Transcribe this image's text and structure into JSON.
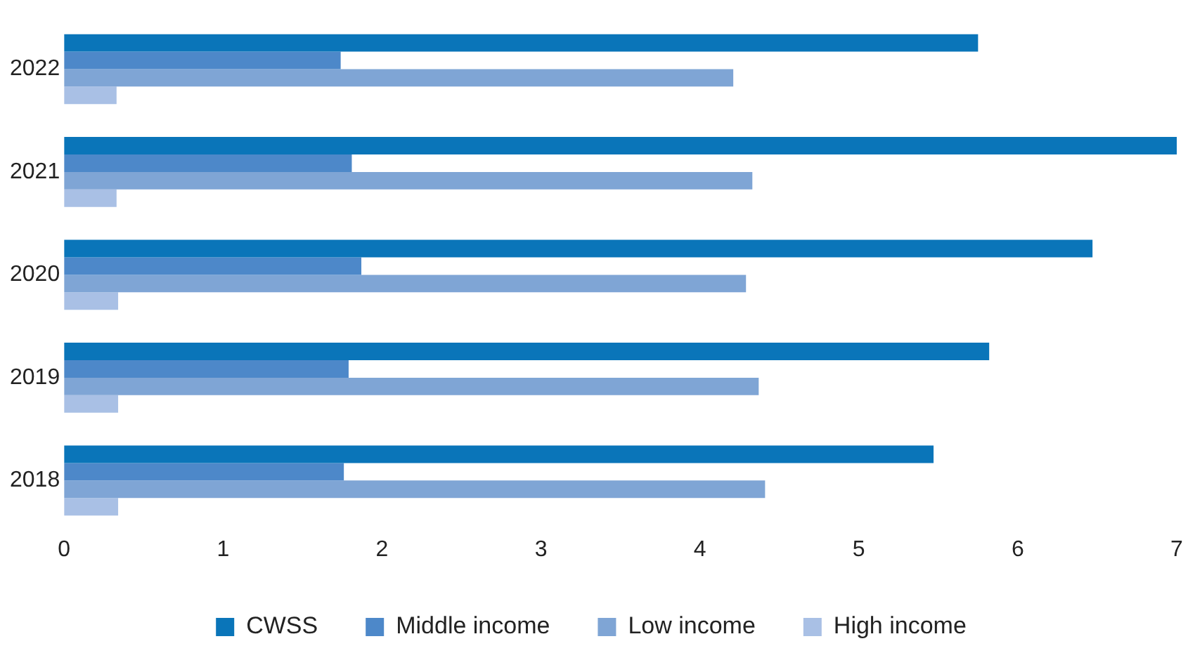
{
  "chart_data": {
    "type": "bar",
    "orientation": "horizontal",
    "categories": [
      "2022",
      "2021",
      "2020",
      "2019",
      "2018"
    ],
    "series": [
      {
        "name": "CWSS",
        "color": "#0a75b9",
        "values": [
          5.75,
          7,
          6.47,
          5.82,
          5.47
        ]
      },
      {
        "name": "Middle income",
        "color": "#4d88c9",
        "values": [
          1.74,
          1.81,
          1.87,
          1.79,
          1.76
        ]
      },
      {
        "name": "Low income",
        "color": "#7fa5d5",
        "values": [
          4.21,
          4.33,
          4.29,
          4.37,
          4.41
        ]
      },
      {
        "name": "High income",
        "color": "#a9c0e5",
        "values": [
          0.33,
          0.33,
          0.34,
          0.34,
          0.34
        ]
      }
    ],
    "xlim": [
      0,
      7
    ],
    "xticks": [
      0,
      1,
      2,
      3,
      4,
      5,
      6,
      7
    ],
    "grid": false,
    "legend": "bottom"
  }
}
